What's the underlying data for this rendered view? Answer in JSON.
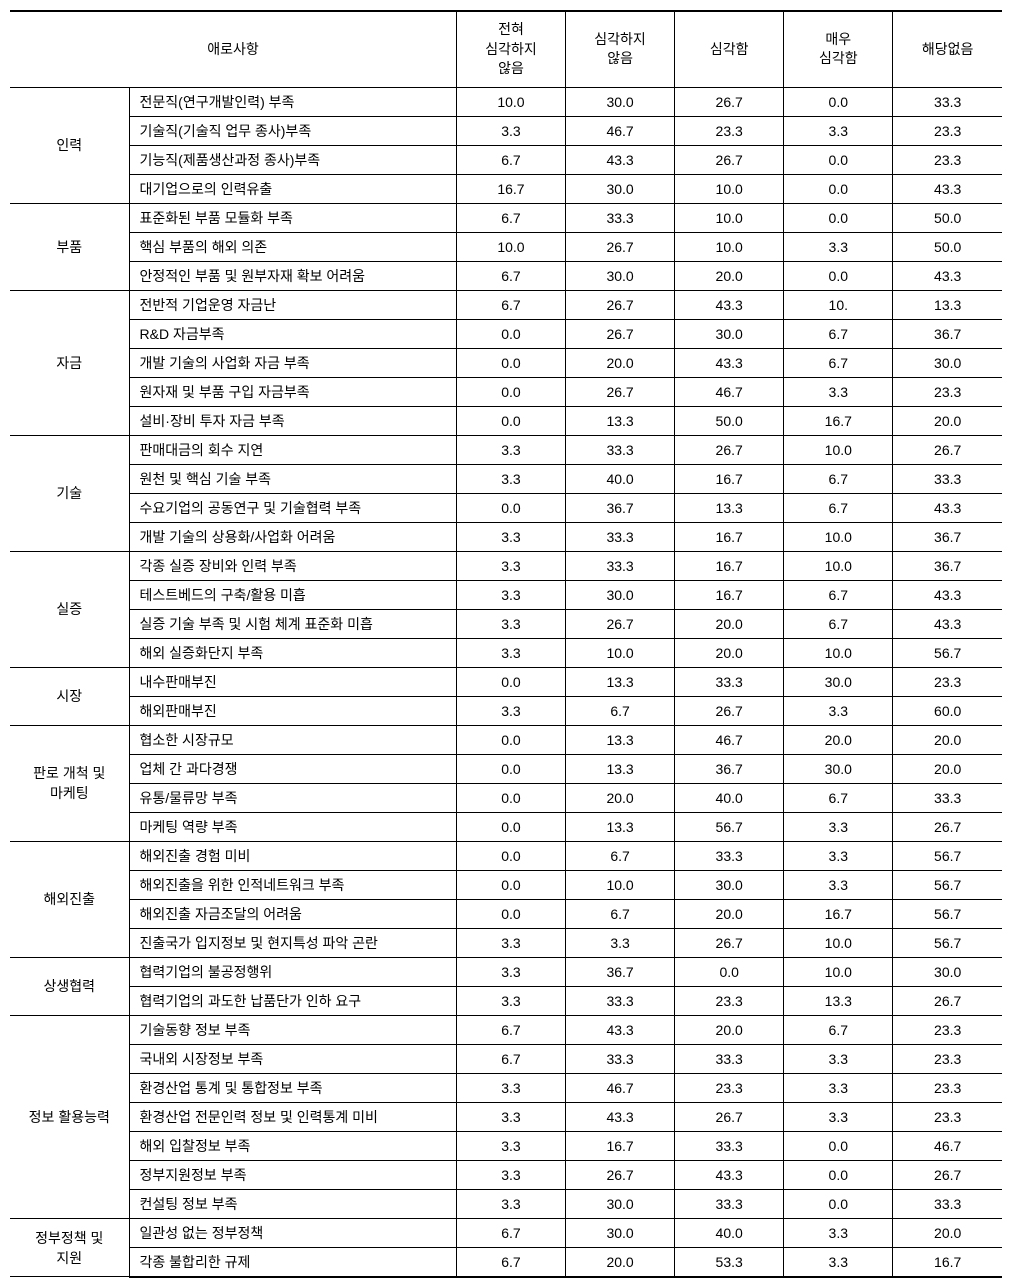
{
  "headers": {
    "main": "애로사항",
    "col1": "전혀\n심각하지\n않음",
    "col2": "심각하지\n않음",
    "col3": "심각함",
    "col4": "매우\n심각함",
    "col5": "해당없음"
  },
  "categories": [
    {
      "name": "인력",
      "items": [
        {
          "label": "전문직(연구개발인력) 부족",
          "values": [
            "10.0",
            "30.0",
            "26.7",
            "0.0",
            "33.3"
          ]
        },
        {
          "label": "기술직(기술직 업무 종사)부족",
          "values": [
            "3.3",
            "46.7",
            "23.3",
            "3.3",
            "23.3"
          ]
        },
        {
          "label": "기능직(제품생산과정 종사)부족",
          "values": [
            "6.7",
            "43.3",
            "26.7",
            "0.0",
            "23.3"
          ]
        },
        {
          "label": "대기업으로의 인력유출",
          "values": [
            "16.7",
            "30.0",
            "10.0",
            "0.0",
            "43.3"
          ]
        }
      ]
    },
    {
      "name": "부품",
      "items": [
        {
          "label": "표준화된 부품 모듈화 부족",
          "values": [
            "6.7",
            "33.3",
            "10.0",
            "0.0",
            "50.0"
          ]
        },
        {
          "label": "핵심 부품의 해외 의존",
          "values": [
            "10.0",
            "26.7",
            "10.0",
            "3.3",
            "50.0"
          ]
        },
        {
          "label": "안정적인 부품 및 원부자재 확보 어려움",
          "values": [
            "6.7",
            "30.0",
            "20.0",
            "0.0",
            "43.3"
          ]
        }
      ]
    },
    {
      "name": "자금",
      "items": [
        {
          "label": "전반적 기업운영 자금난",
          "values": [
            "6.7",
            "26.7",
            "43.3",
            "10.",
            "13.3"
          ]
        },
        {
          "label": "R&D 자금부족",
          "values": [
            "0.0",
            "26.7",
            "30.0",
            "6.7",
            "36.7"
          ]
        },
        {
          "label": "개발 기술의 사업화 자금 부족",
          "values": [
            "0.0",
            "20.0",
            "43.3",
            "6.7",
            "30.0"
          ]
        },
        {
          "label": "원자재 및 부품 구입 자금부족",
          "values": [
            "0.0",
            "26.7",
            "46.7",
            "3.3",
            "23.3"
          ]
        },
        {
          "label": "설비·장비 투자 자금 부족",
          "values": [
            "0.0",
            "13.3",
            "50.0",
            "16.7",
            "20.0"
          ]
        }
      ]
    },
    {
      "name": "기술",
      "items": [
        {
          "label": "판매대금의 회수 지연",
          "values": [
            "3.3",
            "33.3",
            "26.7",
            "10.0",
            "26.7"
          ]
        },
        {
          "label": "원천 및 핵심 기술 부족",
          "values": [
            "3.3",
            "40.0",
            "16.7",
            "6.7",
            "33.3"
          ]
        },
        {
          "label": "수요기업의 공동연구 및 기술협력 부족",
          "values": [
            "0.0",
            "36.7",
            "13.3",
            "6.7",
            "43.3"
          ]
        },
        {
          "label": "개발 기술의 상용화/사업화 어려움",
          "values": [
            "3.3",
            "33.3",
            "16.7",
            "10.0",
            "36.7"
          ]
        }
      ]
    },
    {
      "name": "실증",
      "items": [
        {
          "label": "각종 실증 장비와 인력 부족",
          "values": [
            "3.3",
            "33.3",
            "16.7",
            "10.0",
            "36.7"
          ]
        },
        {
          "label": "테스트베드의 구축/활용 미흡",
          "values": [
            "3.3",
            "30.0",
            "16.7",
            "6.7",
            "43.3"
          ]
        },
        {
          "label": "실증 기술 부족 및 시험 체계 표준화 미흡",
          "values": [
            "3.3",
            "26.7",
            "20.0",
            "6.7",
            "43.3"
          ]
        },
        {
          "label": "해외 실증화단지 부족",
          "values": [
            "3.3",
            "10.0",
            "20.0",
            "10.0",
            "56.7"
          ]
        }
      ]
    },
    {
      "name": "시장",
      "items": [
        {
          "label": "내수판매부진",
          "values": [
            "0.0",
            "13.3",
            "33.3",
            "30.0",
            "23.3"
          ]
        },
        {
          "label": "해외판매부진",
          "values": [
            "3.3",
            "6.7",
            "26.7",
            "3.3",
            "60.0"
          ]
        }
      ]
    },
    {
      "name": "판로 개척 및\n마케팅",
      "items": [
        {
          "label": "협소한 시장규모",
          "values": [
            "0.0",
            "13.3",
            "46.7",
            "20.0",
            "20.0"
          ]
        },
        {
          "label": "업체 간 과다경쟁",
          "values": [
            "0.0",
            "13.3",
            "36.7",
            "30.0",
            "20.0"
          ]
        },
        {
          "label": "유통/물류망 부족",
          "values": [
            "0.0",
            "20.0",
            "40.0",
            "6.7",
            "33.3"
          ]
        },
        {
          "label": "마케팅 역량 부족",
          "values": [
            "0.0",
            "13.3",
            "56.7",
            "3.3",
            "26.7"
          ]
        }
      ]
    },
    {
      "name": "해외진출",
      "items": [
        {
          "label": "해외진출 경험 미비",
          "values": [
            "0.0",
            "6.7",
            "33.3",
            "3.3",
            "56.7"
          ]
        },
        {
          "label": "해외진출을 위한 인적네트워크 부족",
          "values": [
            "0.0",
            "10.0",
            "30.0",
            "3.3",
            "56.7"
          ]
        },
        {
          "label": "해외진출 자금조달의 어려움",
          "values": [
            "0.0",
            "6.7",
            "20.0",
            "16.7",
            "56.7"
          ]
        },
        {
          "label": "진출국가 입지정보 및 현지특성 파악 곤란",
          "values": [
            "3.3",
            "3.3",
            "26.7",
            "10.0",
            "56.7"
          ]
        }
      ]
    },
    {
      "name": "상생협력",
      "items": [
        {
          "label": "협력기업의 불공정행위",
          "values": [
            "3.3",
            "36.7",
            "0.0",
            "10.0",
            "30.0"
          ]
        },
        {
          "label": "협력기업의 과도한 납품단가 인하 요구",
          "values": [
            "3.3",
            "33.3",
            "23.3",
            "13.3",
            "26.7"
          ]
        }
      ]
    },
    {
      "name": "정보 활용능력",
      "items": [
        {
          "label": "기술동향 정보 부족",
          "values": [
            "6.7",
            "43.3",
            "20.0",
            "6.7",
            "23.3"
          ]
        },
        {
          "label": "국내외 시장정보 부족",
          "values": [
            "6.7",
            "33.3",
            "33.3",
            "3.3",
            "23.3"
          ]
        },
        {
          "label": "환경산업 통계 및 통합정보 부족",
          "values": [
            "3.3",
            "46.7",
            "23.3",
            "3.3",
            "23.3"
          ]
        },
        {
          "label": "환경산업 전문인력 정보 및 인력통계 미비",
          "values": [
            "3.3",
            "43.3",
            "26.7",
            "3.3",
            "23.3"
          ]
        },
        {
          "label": "해외 입찰정보 부족",
          "values": [
            "3.3",
            "16.7",
            "33.3",
            "0.0",
            "46.7"
          ]
        },
        {
          "label": "정부지원정보 부족",
          "values": [
            "3.3",
            "26.7",
            "43.3",
            "0.0",
            "26.7"
          ]
        },
        {
          "label": "컨설팅 정보 부족",
          "values": [
            "3.3",
            "30.0",
            "33.3",
            "0.0",
            "33.3"
          ]
        }
      ]
    },
    {
      "name": "정부정책 및\n지원",
      "items": [
        {
          "label": "일관성 없는 정부정책",
          "values": [
            "6.7",
            "30.0",
            "40.0",
            "3.3",
            "20.0"
          ]
        },
        {
          "label": "각종 불합리한 규제",
          "values": [
            "6.7",
            "20.0",
            "53.3",
            "3.3",
            "16.7"
          ]
        }
      ]
    }
  ]
}
